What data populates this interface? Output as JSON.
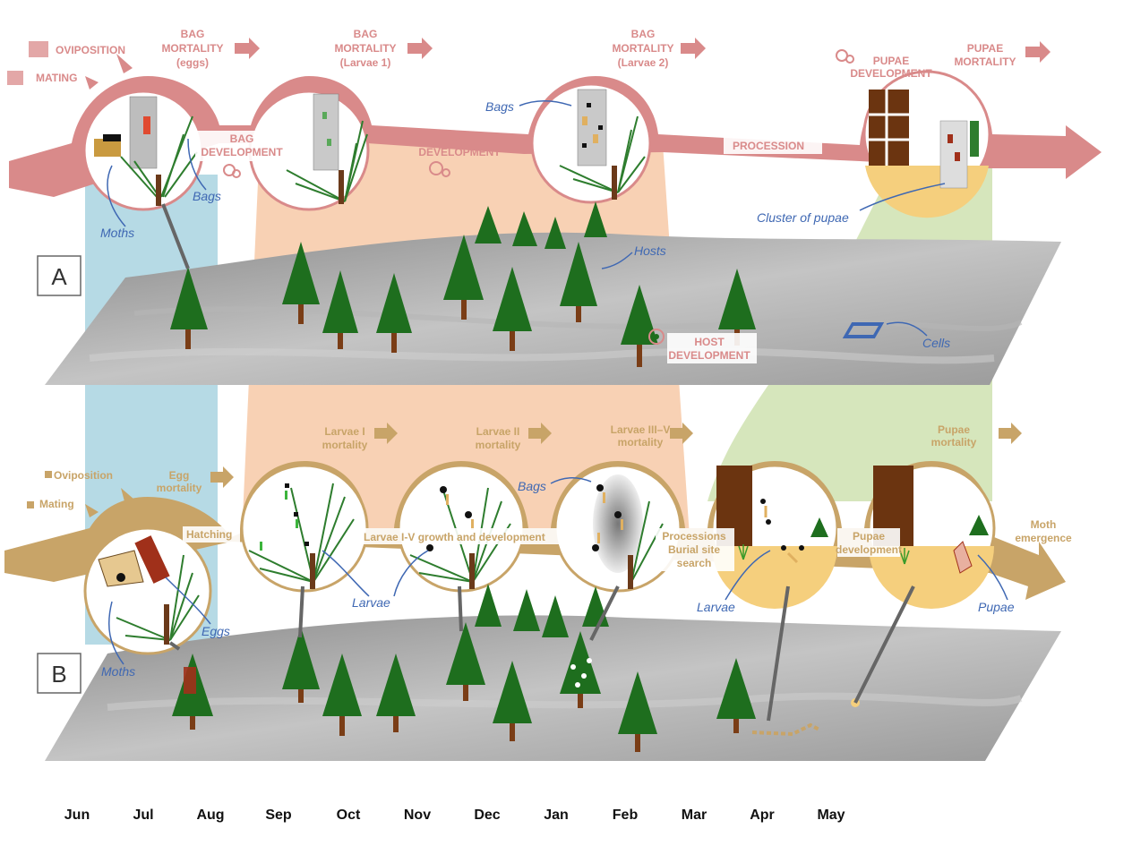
{
  "panel_a": {
    "letter": "A",
    "labels": {
      "oviposition": "OVIPOSITION",
      "mating": "MATING",
      "bag_mortality_eggs": [
        "BAG",
        "MORTALITY",
        "(eggs)"
      ],
      "bag_mortality_l1": [
        "BAG",
        "MORTALITY",
        "(Larvae 1)"
      ],
      "bag_mortality_l2": [
        "BAG",
        "MORTALITY",
        "(Larvae 2)"
      ],
      "bag_development_1": [
        "BAG",
        "DEVELOPMENT"
      ],
      "bag_development_2": [
        "BAG",
        "DEVELOPMENT"
      ],
      "procession": "PROCESSION",
      "pupae_development": [
        "PUPAE",
        "DEVELOPMENT"
      ],
      "pupae_mortality": [
        "PUPAE",
        "MORTALITY"
      ],
      "host_development": [
        "HOST",
        "DEVELOPMENT"
      ]
    },
    "annotations": {
      "moths": "Moths",
      "bags_1": "Bags",
      "bags_2": "Bags",
      "hosts": "Hosts",
      "cluster_of_pupae": "Cluster of pupae",
      "cells": "Cells"
    }
  },
  "panel_b": {
    "letter": "B",
    "labels": {
      "oviposition": "Oviposition",
      "mating": "Mating",
      "egg_mortality": [
        "Egg",
        "mortality"
      ],
      "hatching": "Hatching",
      "larvae_i_mortality": [
        "Larvae I",
        "mortality"
      ],
      "larvae_ii_mortality": [
        "Larvae II",
        "mortality"
      ],
      "larvae_iii_v_mortality": [
        "Larvae III–V",
        "mortality"
      ],
      "larvae_growth": "Larvae I-V growth and development",
      "processions": [
        "Processions",
        "Burial site",
        "search"
      ],
      "pupae_development": [
        "Pupae",
        "development"
      ],
      "pupae_mortality": [
        "Pupae",
        "mortality"
      ],
      "moth_emergence": [
        "Moth",
        "emergence"
      ]
    },
    "annotations": {
      "moths": "Moths",
      "eggs": "Eggs",
      "larvae_1": "Larvae",
      "bags": "Bags",
      "larvae_2": "Larvae",
      "pupae": "Pupae"
    }
  },
  "months": [
    "Jun",
    "Jul",
    "Aug",
    "Sep",
    "Oct",
    "Nov",
    "Dec",
    "Jan",
    "Feb",
    "Mar",
    "Apr",
    "May"
  ],
  "colors": {
    "pink_arrow": "#d98a8a",
    "tan_arrow": "#c8a468",
    "blue_band": "#a9d4e0",
    "orange_band": "#f7c9a7",
    "green_band": "#cfe2b0",
    "tree": "#1e6e1e",
    "annotation": "#3f68b3"
  }
}
